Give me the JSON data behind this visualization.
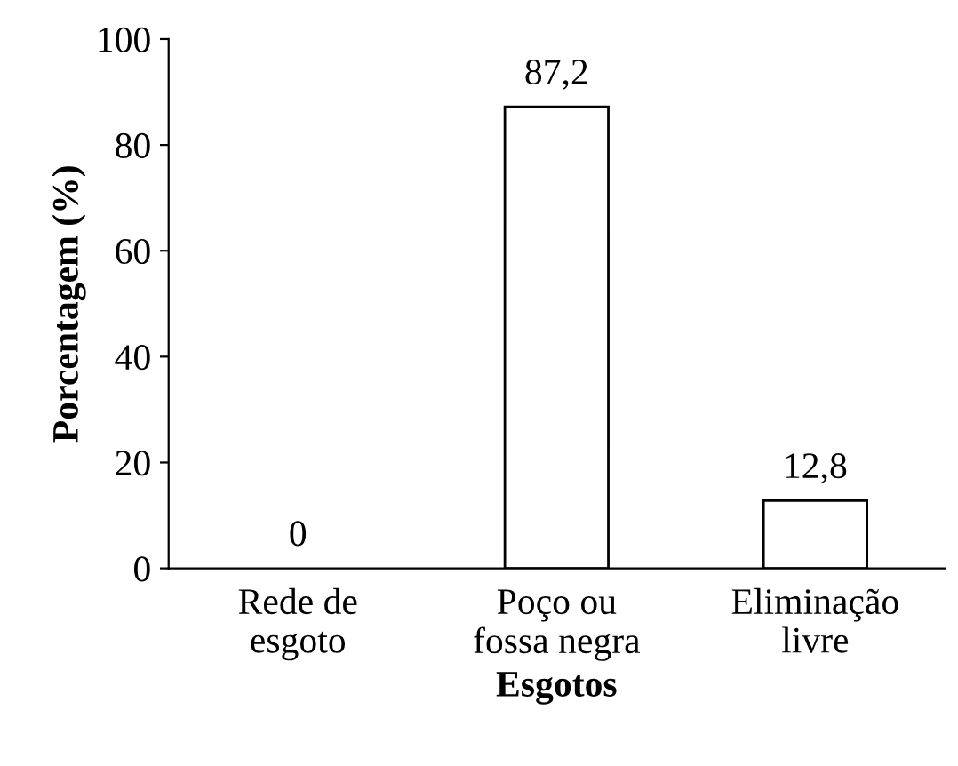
{
  "chart_data": {
    "type": "bar",
    "xlabel": "Esgotos",
    "ylabel": "Porcentagem (%)",
    "categories": [
      "Rede de\nesgoto",
      "Poço ou\nfossa negra",
      "Eliminação\nlivre"
    ],
    "values": [
      0,
      87.2,
      12.8
    ],
    "value_labels": [
      "0",
      "87,2",
      "12,8"
    ],
    "color": "#ffffff",
    "ylim": [
      0,
      100
    ],
    "yticks": [
      0,
      20,
      40,
      60,
      80,
      100
    ],
    "grid": false,
    "legend": false
  }
}
